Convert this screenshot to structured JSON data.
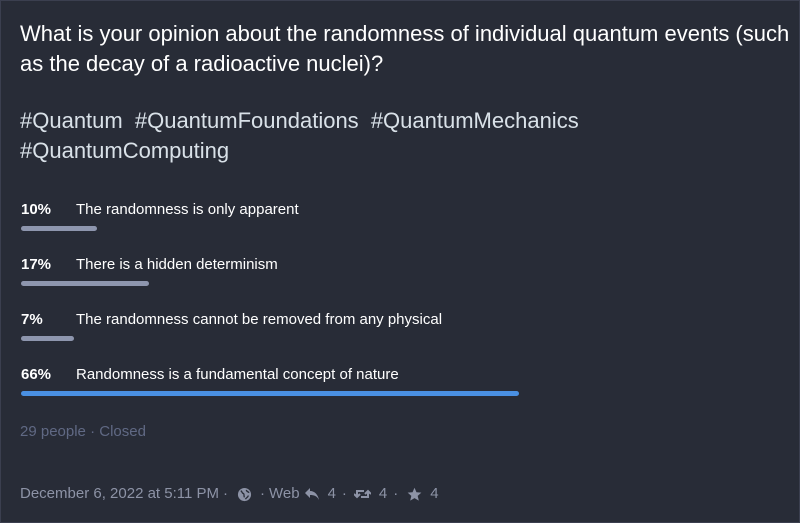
{
  "status": {
    "question": "What is your opinion about the randomness of individual quantum events (such as the decay of a radioactive nuclei)?",
    "hashtags": [
      "#Quantum",
      "#QuantumFoundations",
      "#QuantumMechanics",
      "#QuantumComputing"
    ]
  },
  "poll": {
    "options": [
      {
        "percent_label": "10%",
        "percent": 10,
        "label": "The randomness is only apparent",
        "leading": false
      },
      {
        "percent_label": "17%",
        "percent": 17,
        "label": "There is a hidden determinism",
        "leading": false
      },
      {
        "percent_label": "7%",
        "percent": 7,
        "label": "The randomness cannot be removed from any physical",
        "leading": false
      },
      {
        "percent_label": "66%",
        "percent": 66,
        "label": "Randomness is a fundamental concept of nature",
        "leading": true
      }
    ],
    "voters": "29 people",
    "separator": "·",
    "state": "Closed"
  },
  "meta": {
    "date": "December 6, 2022 at 5:11 PM",
    "separator": "·",
    "visibility_icon": "globe-icon",
    "application": "Web",
    "reply_icon": "reply-icon",
    "replies": "4",
    "boost_icon": "boost-icon",
    "boosts": "4",
    "favourite_icon": "star-icon",
    "favourites": "4"
  },
  "colors": {
    "background": "#282c37",
    "bar": "#8e96ae",
    "bar_leading": "#4a90e2",
    "muted_text": "#606984",
    "meta_text": "#8d93a6"
  }
}
